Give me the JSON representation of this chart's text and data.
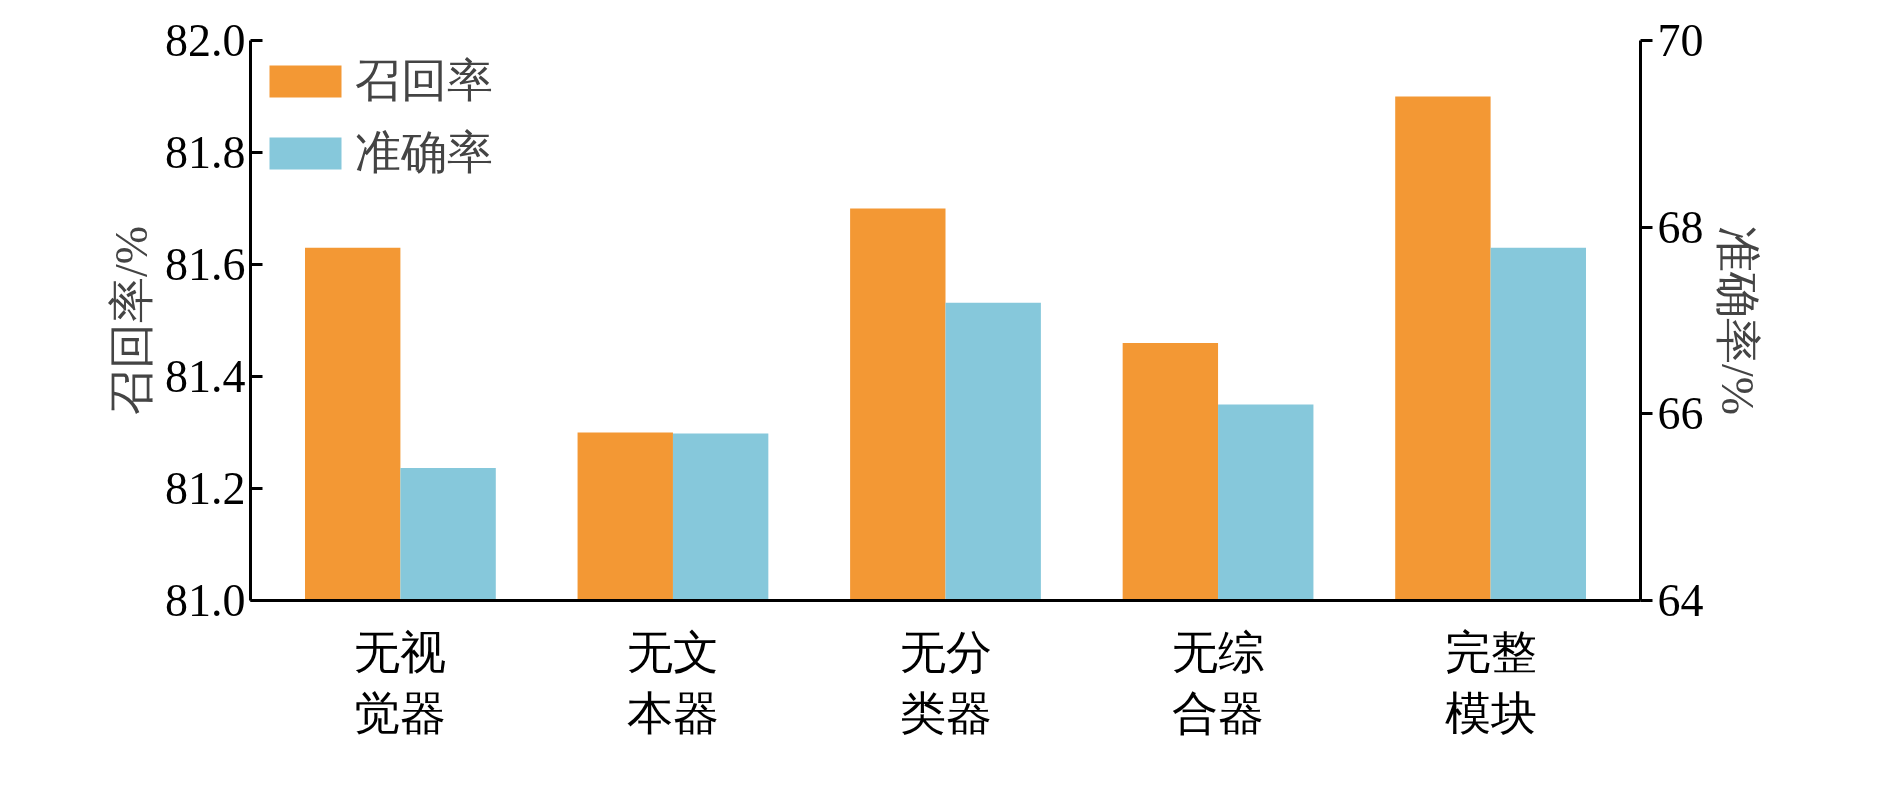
{
  "chart_data": {
    "type": "bar",
    "categories": [
      "无视觉器",
      "无文本器",
      "无分类器",
      "无综合器",
      "完整模块"
    ],
    "series": [
      {
        "name": "召回率",
        "color": "#f39834",
        "values": [
          81.63,
          81.3,
          81.7,
          81.46,
          81.9
        ]
      },
      {
        "name": "准确率",
        "color": "#86c8db",
        "values": [
          65.42,
          65.79,
          67.19,
          66.1,
          67.78
        ],
        "axis": "y2"
      }
    ],
    "ylabel": "召回率/%",
    "y2label": "准确率/%",
    "ylim": [
      81.0,
      82.0
    ],
    "yticks": [
      {
        "value": 81.0,
        "label": "81.0"
      },
      {
        "value": 81.2,
        "label": "81.2"
      },
      {
        "value": 81.4,
        "label": "81.4"
      },
      {
        "value": 81.6,
        "label": "81.6"
      },
      {
        "value": 81.8,
        "label": "81.8"
      },
      {
        "value": 82.0,
        "label": "82.0"
      }
    ],
    "y2lim": [
      64,
      70
    ],
    "y2ticks": [
      64,
      66,
      68,
      70
    ],
    "legend": "top left",
    "grid": false
  }
}
